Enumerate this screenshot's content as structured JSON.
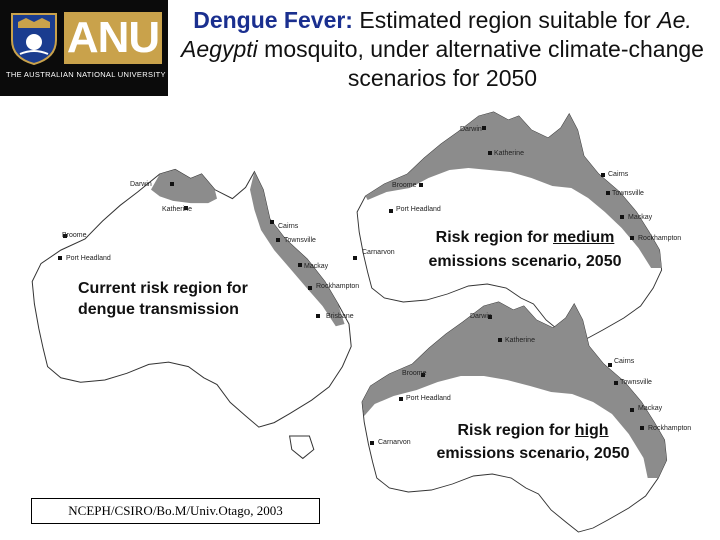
{
  "header": {
    "logo_text": "ANU",
    "university_name": "THE AUSTRALIAN NATIONAL UNIVERSITY",
    "title_part1": "Dengue Fever:",
    "title_part2": " Estimated region suitable for ",
    "title_species": "Ae. Aegypti",
    "title_part3": " mosquito, under alternative climate-change scenarios for 2050"
  },
  "maps": {
    "current": {
      "caption": "Current risk region for dengue transmission",
      "cities": [
        "Darwin",
        "Katherine",
        "Cairns",
        "Broome",
        "Townsville",
        "Port Headland",
        "Mackay",
        "Rockhampton",
        "Brisbane"
      ]
    },
    "medium": {
      "caption_prefix": "Risk region for ",
      "caption_emph": "medium",
      "caption_suffix": "emissions scenario, 2050",
      "cities": [
        "Darwin",
        "Katherine",
        "Cairns",
        "Broome",
        "Townsville",
        "Port Headland",
        "Mackay",
        "Carnarvon",
        "Rockhampton"
      ]
    },
    "high": {
      "caption_prefix": "Risk region for ",
      "caption_emph": "high",
      "caption_suffix": "emissions scenario, 2050",
      "cities": [
        "Darwin",
        "Katherine",
        "Cairns",
        "Broome",
        "Townsville",
        "Port Headland",
        "Mackay",
        "Carnarvon",
        "Rockhampton"
      ]
    }
  },
  "credit": "NCEPH/CSIRO/Bo.M/Univ.Otago, 2003",
  "colors": {
    "risk_fill": "#8c8c8c",
    "title_blue": "#1a2f8f",
    "anu_gold": "#c9a24b"
  }
}
